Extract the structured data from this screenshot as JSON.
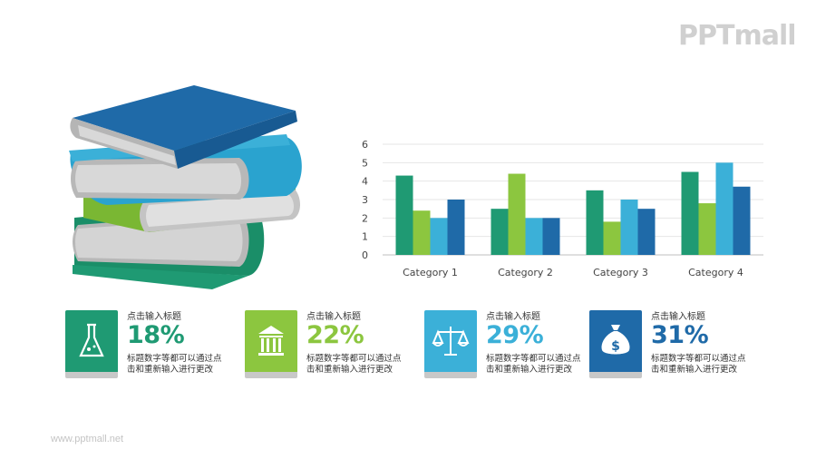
{
  "brand": {
    "logo_text": "PPTmall",
    "footer_url": "www.pptmall.net"
  },
  "colors": {
    "green": "#1f9a73",
    "lime": "#8cc63f",
    "sky": "#3bb0d8",
    "blue": "#1f6aa8"
  },
  "chart_data": {
    "type": "bar",
    "categories": [
      "Category 1",
      "Category 2",
      "Category 3",
      "Category 4"
    ],
    "series": [
      {
        "values": [
          4.3,
          2.5,
          3.5,
          4.5
        ],
        "color": "#1f9a73"
      },
      {
        "values": [
          2.4,
          4.4,
          1.8,
          2.8
        ],
        "color": "#8cc63f"
      },
      {
        "values": [
          2.0,
          2.0,
          3.0,
          5.0
        ],
        "color": "#3bb0d8"
      },
      {
        "values": [
          3.0,
          2.0,
          2.5,
          3.7
        ],
        "color": "#1f6aa8"
      }
    ],
    "ylim": [
      0,
      6
    ],
    "yticks": [
      "0",
      "1",
      "2",
      "3",
      "4",
      "5",
      "6"
    ],
    "grid": true,
    "legend": "none"
  },
  "cards": [
    {
      "title": "点击输入标题",
      "percent": "18%",
      "desc": "标题数字等都可以通过点击和重新输入进行更改",
      "color": "#1f9a73",
      "icon": "flask-icon"
    },
    {
      "title": "点击输入标题",
      "percent": "22%",
      "desc": "标题数字等都可以通过点击和重新输入进行更改",
      "color": "#8cc63f",
      "icon": "bank-icon"
    },
    {
      "title": "点击输入标题",
      "percent": "29%",
      "desc": "标题数字等都可以通过点击和重新输入进行更改",
      "color": "#3bb0d8",
      "icon": "scale-icon"
    },
    {
      "title": "点击输入标题",
      "percent": "31%",
      "desc": "标题数字等都可以通过点击和重新输入进行更改",
      "color": "#1f6aa8",
      "icon": "money-bag-icon"
    }
  ]
}
